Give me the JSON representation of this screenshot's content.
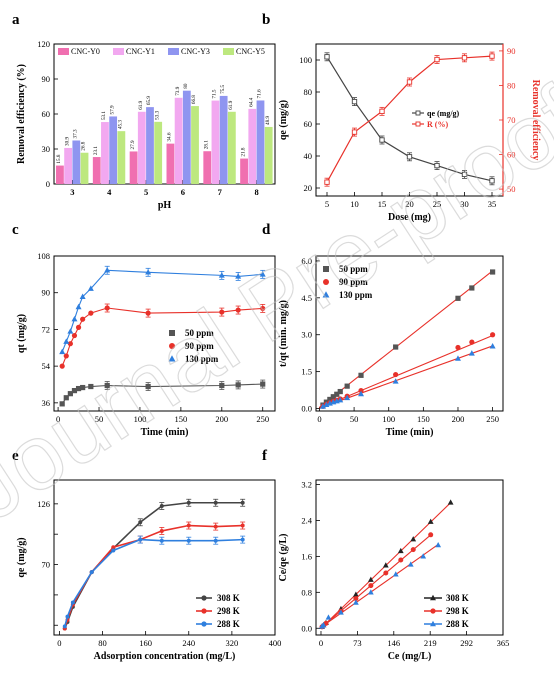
{
  "figure": {
    "watermark_text": "Journal Pre-proof"
  },
  "chart_data": [
    {
      "panel": "a",
      "type": "bar",
      "xlabel": "pH",
      "ylabel": "Removal efficiency (%)",
      "ylim": [
        0,
        120
      ],
      "yticks": [
        0,
        30,
        60,
        90,
        120
      ],
      "categories": [
        "3",
        "4",
        "5",
        "6",
        "7",
        "8"
      ],
      "legend_position": "top",
      "series": [
        {
          "name": "CNC-Y0",
          "color": "#f06fb0",
          "values": [
            15.8,
            23.1,
            27.9,
            34.6,
            28.1,
            21.8
          ]
        },
        {
          "name": "CNC-Y1",
          "color": "#f2a8f0",
          "values": [
            30.9,
            53.1,
            61.9,
            73.9,
            71.5,
            64.4
          ]
        },
        {
          "name": "CNC-Y3",
          "color": "#8f95f0",
          "values": [
            37.3,
            57.9,
            65.9,
            80,
            75.5,
            71.6
          ]
        },
        {
          "name": "CNC-Y5",
          "color": "#bde87f",
          "values": [
            26.8,
            45.3,
            53.3,
            66.8,
            61.9,
            48.9
          ]
        }
      ]
    },
    {
      "panel": "b",
      "type": "line",
      "xlabel": "Dose (mg)",
      "ylabel": "qe (mg/g)",
      "ylabel_right": "Removal efficiency",
      "x": [
        5,
        10,
        15,
        20,
        25,
        30,
        35
      ],
      "xlim": [
        3,
        37
      ],
      "xticks": [
        5,
        10,
        15,
        20,
        25,
        30,
        35
      ],
      "ylim": [
        15,
        110
      ],
      "yticks": [
        20,
        40,
        60,
        80,
        100
      ],
      "ylim_right": [
        48,
        92
      ],
      "yticks_right": [
        50,
        60,
        70,
        80,
        90
      ],
      "legend_position": "center-right",
      "series": [
        {
          "name": "qe (mg/g)",
          "axis": "left",
          "color": "#444444",
          "values": [
            102,
            74,
            50,
            39.5,
            34,
            28.5,
            24.5
          ]
        },
        {
          "name": "R (%)",
          "axis": "right",
          "color": "#e8312a",
          "values": [
            52,
            66.5,
            72.5,
            81,
            87.5,
            88,
            88.5
          ]
        }
      ]
    },
    {
      "panel": "c",
      "type": "line",
      "xlabel": "Time (min)",
      "ylabel": "qt (mg/g)",
      "xlim": [
        -5,
        265
      ],
      "xticks": [
        0,
        50,
        100,
        150,
        200,
        250
      ],
      "ylim": [
        32,
        108
      ],
      "yticks": [
        36,
        54,
        72,
        90,
        108
      ],
      "legend_position": "center-right",
      "x": [
        5,
        10,
        15,
        20,
        25,
        30,
        40,
        60,
        110,
        200,
        220,
        250
      ],
      "series": [
        {
          "name": "50 ppm",
          "color": "#555555",
          "marker": "square",
          "values": [
            35.5,
            38.5,
            40.5,
            42,
            43,
            43.5,
            44,
            44.5,
            44,
            44.5,
            44.8,
            45.2
          ]
        },
        {
          "name": "90 ppm",
          "color": "#e8312a",
          "marker": "circle",
          "values": [
            54,
            59,
            65,
            69,
            73,
            77,
            80,
            82.5,
            80,
            80.5,
            81.5,
            82.3
          ]
        },
        {
          "name": "130 ppm",
          "color": "#2f7fde",
          "marker": "triangle",
          "values": [
            61,
            66,
            71,
            77,
            83,
            88,
            92,
            101,
            100,
            98.5,
            98,
            99
          ]
        }
      ]
    },
    {
      "panel": "d",
      "type": "scatter",
      "xlabel": "Time (min)",
      "ylabel": "t/qt (min. mg/g)",
      "xlim": [
        -5,
        265
      ],
      "xticks": [
        0,
        50,
        100,
        150,
        200,
        250
      ],
      "ylim": [
        -0.1,
        6.2
      ],
      "yticks": [
        0.0,
        1.5,
        3.0,
        4.5,
        6.0
      ],
      "legend_position": "top-left",
      "x": [
        5,
        10,
        15,
        20,
        25,
        30,
        40,
        60,
        110,
        200,
        220,
        250
      ],
      "series": [
        {
          "name": "50 ppm",
          "color": "#555555",
          "marker": "square",
          "fit": [
            0.05,
            0.0222
          ],
          "values": [
            0.14,
            0.26,
            0.37,
            0.48,
            0.58,
            0.69,
            0.91,
            1.35,
            2.5,
            4.48,
            4.9,
            5.55
          ]
        },
        {
          "name": "90 ppm",
          "color": "#e8312a",
          "marker": "circle",
          "fit": [
            0.02,
            0.0118
          ],
          "values": [
            0.09,
            0.17,
            0.23,
            0.29,
            0.34,
            0.39,
            0.5,
            0.73,
            1.38,
            2.48,
            2.7,
            3.0
          ]
        },
        {
          "name": "130 ppm",
          "color": "#2f7fde",
          "marker": "triangle",
          "fit": [
            0.02,
            0.0101
          ],
          "values": [
            0.08,
            0.15,
            0.21,
            0.26,
            0.3,
            0.34,
            0.43,
            0.59,
            1.1,
            2.03,
            2.24,
            2.53
          ]
        }
      ]
    },
    {
      "panel": "e",
      "type": "line",
      "xlabel": "Adsorption concentration (mg/L)",
      "ylabel": "qe (mg/g)",
      "xlim": [
        -10,
        400
      ],
      "xticks": [
        0,
        80,
        160,
        240,
        320,
        400
      ],
      "ylim": [
        5,
        148
      ],
      "yticks": [
        14,
        42,
        70,
        98,
        126
      ],
      "ytick_labels": [
        "",
        "",
        "70",
        "",
        "126"
      ],
      "legend_position": "bottom-right",
      "series": [
        {
          "name": "308 K",
          "color": "#444444",
          "x": [
            10,
            15,
            25,
            60,
            100,
            150,
            190,
            240,
            290,
            340
          ],
          "values": [
            11,
            17,
            31,
            63,
            85,
            109,
            124,
            127,
            127,
            127
          ]
        },
        {
          "name": "298 K",
          "color": "#e8312a",
          "x": [
            10,
            15,
            25,
            60,
            100,
            150,
            190,
            240,
            290,
            340
          ],
          "values": [
            11,
            19,
            33,
            63,
            86,
            93,
            101,
            106,
            105,
            106
          ]
        },
        {
          "name": "288 K",
          "color": "#2f7fde",
          "x": [
            10,
            15,
            25,
            60,
            100,
            150,
            190,
            240,
            290,
            340
          ],
          "values": [
            13,
            22,
            35,
            63,
            83,
            93,
            92,
            92,
            92,
            93
          ]
        }
      ]
    },
    {
      "panel": "f",
      "type": "scatter",
      "xlabel": "Ce (mg/L)",
      "ylabel": "Ce/qe (g/L)",
      "xlim": [
        -10,
        365
      ],
      "xticks": [
        0,
        73,
        146,
        219,
        292,
        365
      ],
      "ylim": [
        -0.15,
        3.3
      ],
      "yticks": [
        0.0,
        0.8,
        1.6,
        2.4,
        3.2
      ],
      "legend_position": "bottom-right",
      "series": [
        {
          "name": "308 K",
          "color": "#222222",
          "marker": "triangle",
          "fit": [
            0.0,
            0.01075
          ],
          "x": [
            2,
            5,
            10,
            40,
            70,
            100,
            130,
            160,
            185,
            220,
            260
          ],
          "values": [
            0.03,
            0.07,
            0.12,
            0.43,
            0.75,
            1.08,
            1.4,
            1.72,
            1.98,
            2.37,
            2.8
          ]
        },
        {
          "name": "298 K",
          "color": "#e8312a",
          "marker": "circle",
          "fit": [
            0.01,
            0.0094
          ],
          "x": [
            2,
            5,
            10,
            40,
            70,
            100,
            130,
            160,
            185,
            220
          ],
          "values": [
            0.03,
            0.06,
            0.11,
            0.38,
            0.66,
            0.95,
            1.23,
            1.52,
            1.75,
            2.08
          ]
        },
        {
          "name": "288 K",
          "color": "#2f7fde",
          "marker": "triangle",
          "fit": [
            0.02,
            0.00785
          ],
          "x": [
            2,
            5,
            15,
            40,
            70,
            100,
            150,
            180,
            205,
            235
          ],
          "values": [
            0.04,
            0.07,
            0.24,
            0.35,
            0.57,
            0.8,
            1.2,
            1.42,
            1.6,
            1.85
          ]
        }
      ]
    }
  ]
}
